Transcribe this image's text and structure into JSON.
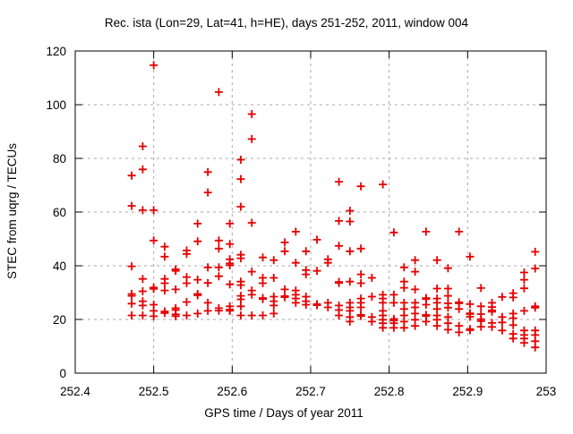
{
  "page": {
    "background": "#ffffff"
  },
  "chart_data": {
    "type": "scatter",
    "title": "Rec. ista (Lon=29, Lat=41, h=HE), days 251-252, 2011, window 004",
    "xlabel": "GPS time / Days of year 2011",
    "ylabel": "STEC from uqrg / TECUs",
    "xlim": [
      252.4,
      253
    ],
    "ylim": [
      0,
      120
    ],
    "xticks": [
      252.4,
      252.5,
      252.6,
      252.7,
      252.8,
      252.9,
      253
    ],
    "xtick_labels": [
      "252.4",
      "252.5",
      "252.6",
      "252.7",
      "252.8",
      "252.9",
      "253"
    ],
    "yticks": [
      0,
      20,
      40,
      60,
      80,
      100,
      120
    ],
    "ytick_labels": [
      "0",
      "20",
      "40",
      "60",
      "80",
      "100",
      "120"
    ],
    "grid": true,
    "grid_style": "dashed",
    "grid_color": "#a8a8a8",
    "axis_color": "#000000",
    "legend": "none",
    "marker": {
      "shape": "plus",
      "color": "#e60000",
      "size": 9,
      "stroke_width": 1.8
    },
    "series": [
      {
        "name": "STEC",
        "columns": [
          {
            "t": 252.472,
            "v": [
              73.6,
              62.3,
              39.8,
              29.5,
              28.8,
              25.9,
              21.5
            ]
          },
          {
            "t": 252.486,
            "v": [
              84.5,
              75.9,
              60.7,
              35.1,
              30.5,
              26.8,
              25.2,
              21.5
            ]
          },
          {
            "t": 252.5,
            "v": [
              114.7,
              60.7,
              49.4,
              31.9,
              31.4,
              25.5,
              23.2,
              21.2
            ]
          },
          {
            "t": 252.514,
            "v": [
              47.1,
              43.4,
              35.1,
              33.5,
              30.8,
              23.0,
              22.4
            ]
          },
          {
            "t": 252.528,
            "v": [
              38.7,
              38.1,
              31.2,
              24.2,
              23.5,
              21.9,
              21.2
            ]
          },
          {
            "t": 252.542,
            "v": [
              45.7,
              44.4,
              35.8,
              33.5,
              26.5,
              21.5
            ]
          },
          {
            "t": 252.556,
            "v": [
              55.7,
              49.1,
              34.8,
              29.5,
              29.0,
              22.2
            ]
          },
          {
            "t": 252.569,
            "v": [
              74.9,
              67.3,
              39.4,
              33.6,
              26.2,
              23.2
            ]
          },
          {
            "t": 252.583,
            "v": [
              104.7,
              49.4,
              46.4,
              39.4,
              36.1,
              24.2,
              23.3
            ]
          },
          {
            "t": 252.597,
            "v": [
              55.7,
              48.1,
              42.4,
              40.9,
              40.2,
              33.1,
              24.9,
              23.7,
              23.2
            ]
          },
          {
            "t": 252.611,
            "v": [
              79.5,
              72.3,
              62.0,
              44.1,
              42.8,
              34.1,
              32.8,
              28.8,
              27.5,
              24.9,
              21.5
            ]
          },
          {
            "t": 252.625,
            "v": [
              96.5,
              87.2,
              56.0,
              37.8,
              30.8,
              29.2,
              21.5
            ]
          },
          {
            "t": 252.639,
            "v": [
              43.1,
              35.5,
              33.5,
              28.0,
              27.6,
              21.5
            ]
          },
          {
            "t": 252.653,
            "v": [
              42.1,
              35.5,
              28.5,
              26.8,
              25.2,
              22.2
            ]
          },
          {
            "t": 252.667,
            "v": [
              48.7,
              45.4,
              31.2,
              28.7,
              28.3
            ]
          },
          {
            "t": 252.681,
            "v": [
              52.7,
              41.1,
              30.8,
              29.2,
              27.8,
              26.2
            ]
          },
          {
            "t": 252.694,
            "v": [
              45.4,
              38.4,
              36.8,
              28.5,
              26.8,
              25.5
            ]
          },
          {
            "t": 252.708,
            "v": [
              49.7,
              38.1,
              25.7,
              25.3
            ]
          },
          {
            "t": 252.722,
            "v": [
              42.4,
              41.1,
              26.2,
              24.5
            ]
          },
          {
            "t": 252.736,
            "v": [
              71.3,
              56.7,
              47.4,
              34.0,
              33.6,
              25.2,
              23.5,
              21.5
            ]
          },
          {
            "t": 252.75,
            "v": [
              60.5,
              56.5,
              45.4,
              34.1,
              26.2,
              24.5,
              23.2,
              20.9,
              19.2
            ]
          },
          {
            "t": 252.764,
            "v": [
              69.6,
              46.4,
              36.8,
              33.5,
              27.8,
              26.2,
              24.5,
              21.7,
              21.3
            ]
          },
          {
            "t": 252.778,
            "v": [
              35.5,
              28.5,
              20.9,
              19.2
            ]
          },
          {
            "t": 252.792,
            "v": [
              70.3,
              29.2,
              27.8,
              26.2,
              23.2,
              21.5,
              19.9,
              18.6,
              16.9
            ]
          },
          {
            "t": 252.806,
            "v": [
              52.4,
              29.2,
              26.2,
              20.2,
              19.6,
              18.6,
              16.9
            ]
          },
          {
            "t": 252.819,
            "v": [
              39.4,
              34.1,
              31.8,
              26.2,
              23.9,
              21.5,
              19.2,
              16.9
            ]
          },
          {
            "t": 252.833,
            "v": [
              42.1,
              37.8,
              31.2,
              26.2,
              24.5,
              22.2,
              19.9,
              17.6
            ]
          },
          {
            "t": 252.847,
            "v": [
              52.7,
              28.0,
              27.6,
              25.5,
              21.7,
              21.3,
              19.2
            ]
          },
          {
            "t": 252.861,
            "v": [
              42.1,
              31.5,
              27.8,
              26.2,
              23.9,
              21.5,
              19.9,
              17.6
            ]
          },
          {
            "t": 252.875,
            "v": [
              39.1,
              31.5,
              28.8,
              26.0,
              24.4,
              20.9,
              18.6,
              16.2
            ]
          },
          {
            "t": 252.889,
            "v": [
              52.7,
              26.4,
              26.0,
              23.9,
              17.6,
              15.2
            ]
          },
          {
            "t": 252.903,
            "v": [
              43.4,
              25.7,
              22.3,
              22.0,
              21.0,
              16.4,
              16.0
            ]
          },
          {
            "t": 252.917,
            "v": [
              31.7,
              24.9,
              22.0,
              20.1,
              19.4,
              17.3
            ]
          },
          {
            "t": 252.931,
            "v": [
              26.2,
              24.6,
              23.4,
              22.9,
              18.7,
              17.2
            ]
          },
          {
            "t": 252.944,
            "v": [
              28.4,
              20.9,
              18.9,
              15.9
            ]
          },
          {
            "t": 252.958,
            "v": [
              29.8,
              28.2,
              22.2,
              20.5,
              17.9,
              14.6,
              12.9
            ]
          },
          {
            "t": 252.972,
            "v": [
              37.5,
              34.8,
              31.6,
              23.2,
              15.9,
              14.2,
              12.9,
              11.3
            ]
          },
          {
            "t": 252.986,
            "v": [
              45.2,
              39.0,
              24.9,
              24.4,
              15.9,
              14.2,
              11.9,
              9.6
            ]
          }
        ]
      }
    ]
  }
}
